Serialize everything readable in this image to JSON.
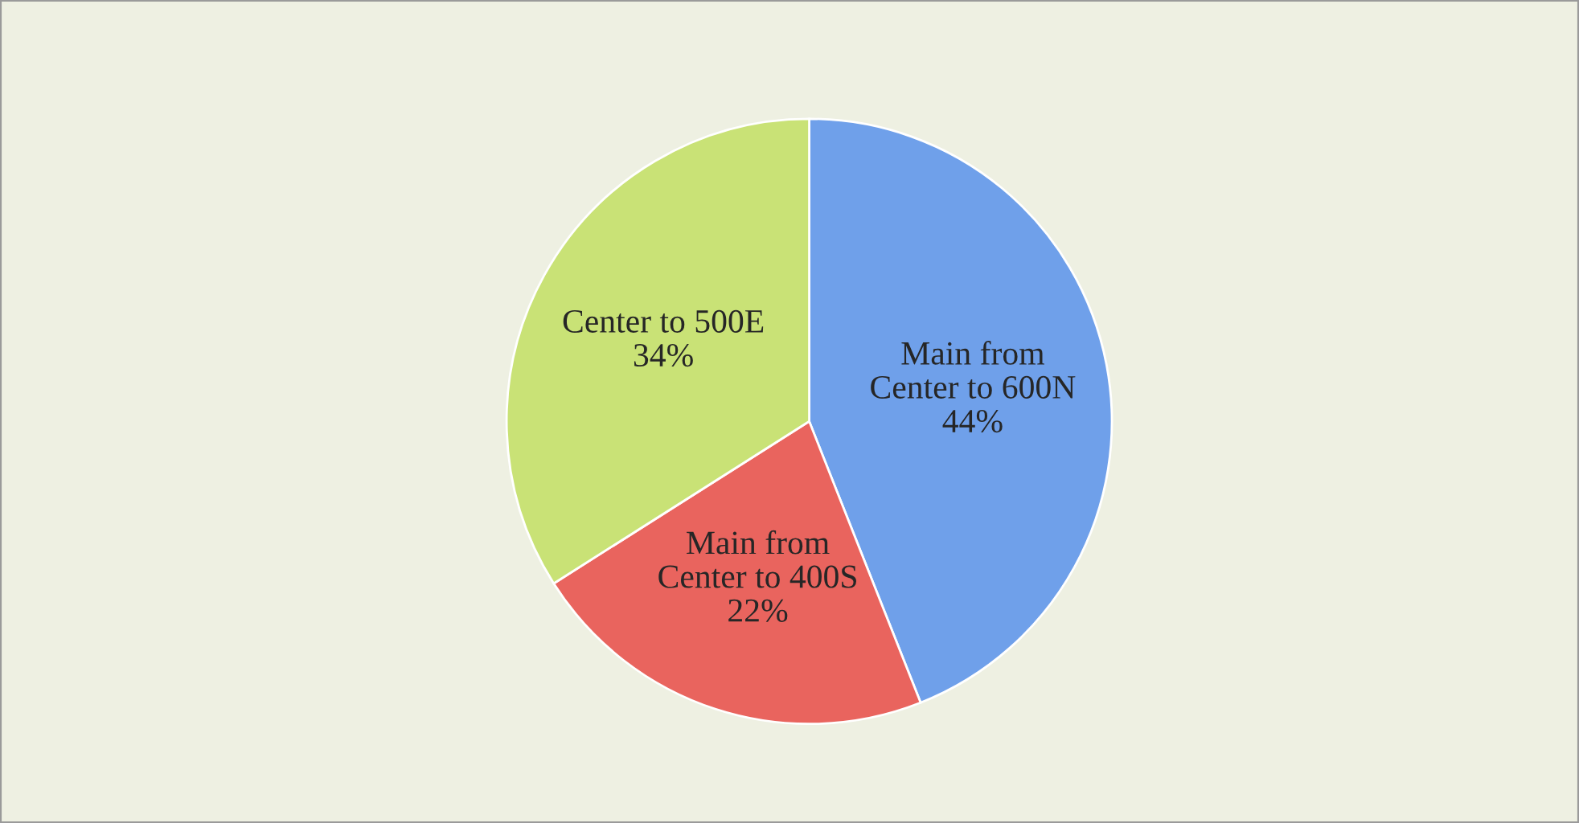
{
  "chart_data": {
    "type": "pie",
    "categories": [
      "Main from\nCenter to 600N",
      "Main from\nCenter to 400S",
      "Center to 500E"
    ],
    "values": [
      44,
      22,
      34
    ],
    "colors": [
      "#6fa0ea",
      "#e9645e",
      "#c9e276"
    ],
    "value_labels": [
      "44%",
      "22%",
      "34%"
    ],
    "legend": false
  }
}
